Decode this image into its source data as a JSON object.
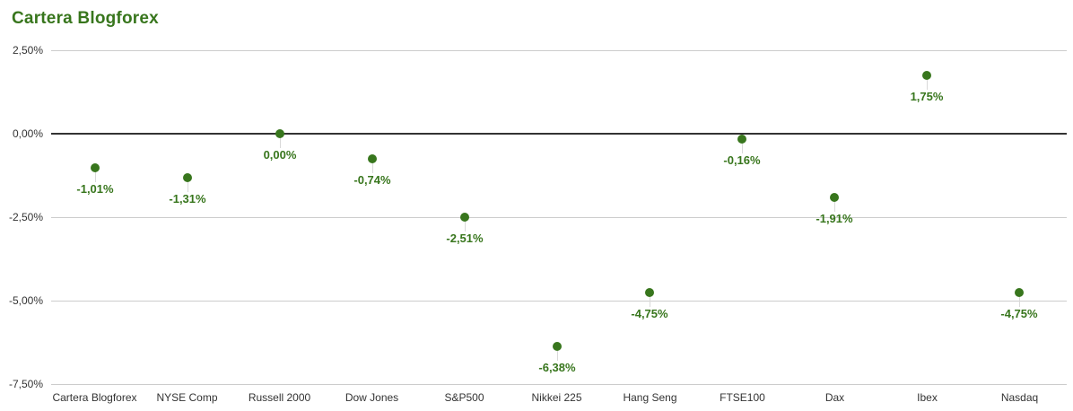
{
  "chart_data": {
    "type": "scatter",
    "title": "Cartera Blogforex",
    "categories": [
      "Cartera Blogforex",
      "NYSE Comp",
      "Russell 2000",
      "Dow Jones",
      "S&P500",
      "Nikkei 225",
      "Hang Seng",
      "FTSE100",
      "Dax",
      "Ibex",
      "Nasdaq"
    ],
    "values": [
      -1.01,
      -1.31,
      0,
      -0.74,
      -2.51,
      -6.38,
      -4.75,
      -0.16,
      -1.91,
      1.75,
      -4.75
    ],
    "point_labels": [
      "-1,01%",
      "-1,31%",
      "0,00%",
      "-0,74%",
      "-2,51%",
      "-6,38%",
      "-4,75%",
      "-0,16%",
      "-1,91%",
      "1,75%",
      "-4,75%"
    ],
    "y_ticks": [
      {
        "value": 2.5,
        "label": "2,50%"
      },
      {
        "value": 0,
        "label": "0,00%"
      },
      {
        "value": -2.5,
        "label": "-2,50%"
      },
      {
        "value": -5,
        "label": "-5,00%"
      },
      {
        "value": -7.5,
        "label": "-7,50%"
      }
    ],
    "ylim": [
      -7.5,
      2.5
    ],
    "grid": true,
    "legend": "none",
    "xlabel": "",
    "ylabel": ""
  },
  "colors": {
    "point_green": "#38761d",
    "title_green": "#38761d",
    "baseline": "#333333",
    "gridline": "#cccccc",
    "stem": "#d9d9d9",
    "axis_text": "#333333",
    "background": "#ffffff"
  }
}
